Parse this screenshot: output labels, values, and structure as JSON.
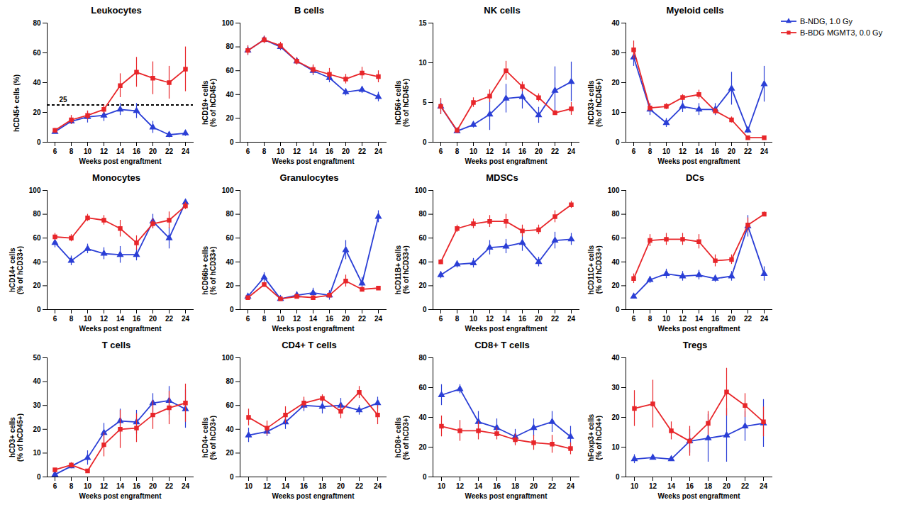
{
  "chart_data": [
    {
      "type": "line",
      "title": "Leukocytes",
      "x_label": "Weeks post engraftment",
      "y_label": "hCD45+ cells (%)",
      "x": [
        6,
        8,
        10,
        12,
        14,
        16,
        20,
        22,
        24
      ],
      "ylim": [
        0,
        80
      ],
      "yticks": [
        0,
        20,
        40,
        60,
        80
      ],
      "reference_line": {
        "y": 25,
        "label": "25",
        "line_style": "dashed"
      },
      "series": [
        {
          "name": "B-NDG, 1.0 Gy",
          "color": "#2b3fd6",
          "marker": "triangle",
          "values": [
            7,
            14,
            17,
            18,
            22,
            21,
            10,
            5,
            6
          ],
          "error": [
            1,
            2,
            4,
            4,
            4,
            5,
            4,
            2,
            2
          ]
        },
        {
          "name": "B-BDG MGMT3, 0.0 Gy",
          "color": "#e8262a",
          "marker": "square",
          "values": [
            8,
            15,
            18,
            22,
            38,
            47,
            43,
            40,
            49
          ],
          "error": [
            1,
            3,
            3,
            3,
            8,
            10,
            11,
            11,
            15
          ]
        }
      ]
    },
    {
      "type": "line",
      "title": "B cells",
      "x_label": "Weeks post engraftment",
      "y_label": "hCD19+ cells\n(% of hCD45+)",
      "x": [
        6,
        8,
        10,
        12,
        14,
        16,
        20,
        22,
        24
      ],
      "ylim": [
        0,
        100
      ],
      "yticks": [
        0,
        20,
        40,
        60,
        80,
        100
      ],
      "series": [
        {
          "name": "B-NDG, 1.0 Gy",
          "color": "#2b3fd6",
          "marker": "triangle",
          "values": [
            77,
            86,
            80,
            68,
            60,
            54,
            42,
            44,
            38
          ],
          "error": [
            4,
            3,
            3,
            3,
            4,
            4,
            3,
            3,
            4
          ]
        },
        {
          "name": "B-BDG MGMT3, 0.0 Gy",
          "color": "#e8262a",
          "marker": "square",
          "values": [
            77,
            86,
            81,
            68,
            61,
            57,
            53,
            58,
            55
          ],
          "error": [
            4,
            3,
            3,
            3,
            4,
            5,
            4,
            5,
            5
          ]
        }
      ]
    },
    {
      "type": "line",
      "title": "NK cells",
      "x_label": "Weeks post engraftment",
      "y_label": "hCD56+ cells\n(% of hCD45+)",
      "x": [
        6,
        8,
        10,
        12,
        14,
        16,
        20,
        22,
        24
      ],
      "ylim": [
        0,
        15
      ],
      "yticks": [
        0,
        5,
        10,
        15
      ],
      "series": [
        {
          "name": "B-NDG, 1.0 Gy",
          "color": "#2b3fd6",
          "marker": "triangle",
          "values": [
            4.5,
            1.4,
            2.2,
            3.5,
            5.5,
            5.7,
            3.4,
            6.5,
            7.6
          ],
          "error": [
            1.0,
            0.3,
            0.4,
            2.0,
            1.8,
            1.5,
            1.0,
            3.0,
            2.5
          ]
        },
        {
          "name": "B-BDG MGMT3, 0.0 Gy",
          "color": "#e8262a",
          "marker": "square",
          "values": [
            4.5,
            1.5,
            5.0,
            5.8,
            9.0,
            7.0,
            5.6,
            3.7,
            4.2
          ],
          "error": [
            1.0,
            0.3,
            0.6,
            0.8,
            1.2,
            0.6,
            0.5,
            0.3,
            0.8
          ]
        }
      ]
    },
    {
      "type": "line",
      "title": "Myeloid cells",
      "x_label": "Weeks post engraftment",
      "y_label": "hCD33+ cells\n(% of hCD45+)",
      "x": [
        6,
        8,
        10,
        12,
        14,
        16,
        20,
        22,
        24
      ],
      "ylim": [
        0,
        40
      ],
      "yticks": [
        0,
        10,
        20,
        30,
        40
      ],
      "legend": "top-right",
      "series": [
        {
          "name": "B-NDG, 1.0 Gy",
          "color": "#2b3fd6",
          "marker": "triangle",
          "values": [
            28.5,
            11,
            6.5,
            12,
            11,
            11,
            18,
            4,
            19.5
          ],
          "error": [
            3,
            2,
            1.5,
            2,
            2,
            2,
            5.5,
            1,
            6
          ]
        },
        {
          "name": "B-BDG MGMT3, 0.0 Gy",
          "color": "#e8262a",
          "marker": "square",
          "values": [
            31,
            11.5,
            12,
            15,
            16,
            10.5,
            7.5,
            1.5,
            1.5
          ],
          "error": [
            3,
            1,
            1,
            1,
            1.5,
            1,
            1,
            0.5,
            0.3
          ]
        }
      ]
    },
    {
      "type": "line",
      "title": "Monocytes",
      "x_label": "Weeks post engraftment",
      "y_label": "hCD14+ cells\n(% of hCD33+)",
      "x": [
        6,
        8,
        10,
        12,
        14,
        16,
        20,
        22,
        24
      ],
      "ylim": [
        0,
        100
      ],
      "yticks": [
        0,
        20,
        40,
        60,
        80,
        100
      ],
      "series": [
        {
          "name": "B-NDG, 1.0 Gy",
          "color": "#2b3fd6",
          "marker": "triangle",
          "values": [
            56,
            41,
            51,
            47,
            46,
            46,
            74,
            60,
            90
          ],
          "error": [
            4,
            4,
            4,
            5,
            7,
            5,
            6,
            9,
            2
          ]
        },
        {
          "name": "B-BDG MGMT3, 0.0 Gy",
          "color": "#e8262a",
          "marker": "square",
          "values": [
            61,
            60,
            77,
            75,
            68,
            56,
            72,
            75,
            87
          ],
          "error": [
            3,
            3,
            3,
            4,
            7,
            6,
            4,
            7,
            3
          ]
        }
      ]
    },
    {
      "type": "line",
      "title": "Granulocytes",
      "x_label": "Weeks post engraftment",
      "y_label": "hCD66b+ cells\n(% of hCD33+)",
      "x": [
        6,
        8,
        10,
        12,
        14,
        16,
        20,
        22,
        24
      ],
      "ylim": [
        0,
        100
      ],
      "yticks": [
        0,
        20,
        40,
        60,
        80,
        100
      ],
      "series": [
        {
          "name": "B-NDG, 1.0 Gy",
          "color": "#2b3fd6",
          "marker": "triangle",
          "values": [
            11,
            27,
            9,
            12,
            14,
            12,
            50,
            22,
            78
          ],
          "error": [
            1,
            4,
            1,
            3,
            4,
            4,
            8,
            5,
            5
          ]
        },
        {
          "name": "B-BDG MGMT3, 0.0 Gy",
          "color": "#e8262a",
          "marker": "square",
          "values": [
            10,
            21,
            9,
            11,
            10,
            12,
            24,
            17,
            18
          ],
          "error": [
            1,
            2,
            1,
            2,
            1,
            2,
            5,
            2,
            1
          ]
        }
      ]
    },
    {
      "type": "line",
      "title": "MDSCs",
      "x_label": "Weeks post engraftment",
      "y_label": "hCD11B+ cells\n(% of hCD33+)",
      "x": [
        6,
        8,
        10,
        12,
        14,
        16,
        20,
        22,
        24
      ],
      "ylim": [
        0,
        100
      ],
      "yticks": [
        0,
        20,
        40,
        60,
        80,
        100
      ],
      "series": [
        {
          "name": "B-NDG, 1.0 Gy",
          "color": "#2b3fd6",
          "marker": "triangle",
          "values": [
            29,
            38,
            39,
            52,
            53,
            56,
            40,
            58,
            59
          ],
          "error": [
            3,
            3,
            4,
            6,
            6,
            7,
            4,
            7,
            5
          ]
        },
        {
          "name": "B-BDG MGMT3, 0.0 Gy",
          "color": "#e8262a",
          "marker": "square",
          "values": [
            40,
            68,
            72,
            74,
            74,
            66,
            67,
            78,
            88
          ],
          "error": [
            2,
            3,
            4,
            5,
            6,
            5,
            4,
            5,
            3
          ]
        }
      ]
    },
    {
      "type": "line",
      "title": "DCs",
      "x_label": "Weeks post engraftment",
      "y_label": "hCD11C+ cells\n(% of hCD33+)",
      "x": [
        6,
        8,
        10,
        12,
        14,
        16,
        20,
        22,
        24
      ],
      "ylim": [
        0,
        100
      ],
      "yticks": [
        0,
        20,
        40,
        60,
        80,
        100
      ],
      "series": [
        {
          "name": "B-NDG, 1.0 Gy",
          "color": "#2b3fd6",
          "marker": "triangle",
          "values": [
            11,
            25,
            30,
            28,
            29,
            26,
            28,
            70,
            30
          ],
          "error": [
            1,
            3,
            4,
            4,
            4,
            3,
            4,
            9,
            6
          ]
        },
        {
          "name": "B-BDG MGMT3, 0.0 Gy",
          "color": "#e8262a",
          "marker": "square",
          "values": [
            26,
            58,
            59,
            59,
            57,
            41,
            42,
            71,
            80
          ],
          "error": [
            4,
            5,
            5,
            5,
            6,
            5,
            4,
            6,
            2
          ]
        }
      ]
    },
    {
      "type": "line",
      "title": "T cells",
      "x_label": "Weeks post engraftment",
      "y_label": "hCD3+ cells\n(% of hCD45+)",
      "x": [
        6,
        8,
        10,
        12,
        14,
        16,
        20,
        22,
        24
      ],
      "ylim": [
        0,
        50
      ],
      "yticks": [
        0,
        10,
        20,
        30,
        40,
        50
      ],
      "series": [
        {
          "name": "B-NDG, 1.0 Gy",
          "color": "#2b3fd6",
          "marker": "triangle",
          "values": [
            1,
            4.5,
            8,
            18.5,
            23.5,
            23,
            31,
            32,
            28.5
          ],
          "error": [
            0.5,
            1,
            3,
            4,
            5,
            5,
            4,
            6,
            8
          ]
        },
        {
          "name": "B-BDG MGMT3, 0.0 Gy",
          "color": "#e8262a",
          "marker": "square",
          "values": [
            3,
            5,
            2.5,
            13.5,
            20,
            20.5,
            26,
            29,
            31
          ],
          "error": [
            0.5,
            1,
            0.5,
            5,
            8,
            6,
            6,
            7,
            8
          ]
        }
      ]
    },
    {
      "type": "line",
      "title": "CD4+ T cells",
      "x_label": "Weeks post engraftment",
      "y_label": "hCD4+ cells\n(% of hCD3+)",
      "x": [
        10,
        12,
        14,
        16,
        18,
        20,
        22,
        24
      ],
      "ylim": [
        0,
        100
      ],
      "yticks": [
        0,
        20,
        40,
        60,
        80,
        100
      ],
      "series": [
        {
          "name": "B-NDG, 1.0 Gy",
          "color": "#2b3fd6",
          "marker": "triangle",
          "values": [
            35,
            38,
            46,
            60,
            59,
            60,
            56,
            62
          ],
          "error": [
            6,
            4,
            6,
            5,
            6,
            6,
            4,
            5
          ]
        },
        {
          "name": "B-BDG MGMT3, 0.0 Gy",
          "color": "#e8262a",
          "marker": "square",
          "values": [
            50,
            41,
            52,
            62,
            66,
            55,
            71,
            52
          ],
          "error": [
            7,
            6,
            7,
            5,
            3,
            6,
            5,
            8
          ]
        }
      ]
    },
    {
      "type": "line",
      "title": "CD8+ T cells",
      "x_label": "Weeks post engraftment",
      "y_label": "hCD8+ cells\n(% of hCD3+)",
      "x": [
        10,
        12,
        14,
        16,
        18,
        20,
        22,
        24
      ],
      "ylim": [
        0,
        80
      ],
      "yticks": [
        0,
        20,
        40,
        60,
        80
      ],
      "series": [
        {
          "name": "B-NDG, 1.0 Gy",
          "color": "#2b3fd6",
          "marker": "triangle",
          "values": [
            55,
            59,
            37,
            33,
            27,
            33,
            37,
            27
          ],
          "error": [
            7,
            3,
            7,
            6,
            5,
            6,
            7,
            7
          ]
        },
        {
          "name": "B-BDG MGMT3, 0.0 Gy",
          "color": "#e8262a",
          "marker": "square",
          "values": [
            34,
            31,
            31,
            29,
            25,
            23,
            22,
            19
          ],
          "error": [
            7,
            7,
            6,
            4,
            4,
            5,
            6,
            4
          ]
        }
      ]
    },
    {
      "type": "line",
      "title": "Tregs",
      "x_label": "Weeks post engraftment",
      "y_label": "hFoxp3+ cells\n(% of hCD4+)",
      "x": [
        10,
        12,
        14,
        16,
        18,
        20,
        22,
        24
      ],
      "ylim": [
        0,
        40
      ],
      "yticks": [
        0,
        10,
        20,
        30,
        40
      ],
      "series": [
        {
          "name": "B-NDG, 1.0 Gy",
          "color": "#2b3fd6",
          "marker": "triangle",
          "values": [
            6,
            6.5,
            6,
            12,
            13,
            14,
            17,
            18
          ],
          "error": [
            1.5,
            0.5,
            0.5,
            4,
            8,
            9,
            5,
            8
          ]
        },
        {
          "name": "B-BDG MGMT3, 0.0 Gy",
          "color": "#e8262a",
          "marker": "square",
          "values": [
            23,
            24.5,
            15.5,
            12,
            18,
            28.5,
            24,
            18.5
          ],
          "error": [
            6,
            8,
            3,
            5,
            4,
            8,
            4,
            5
          ]
        }
      ]
    }
  ]
}
